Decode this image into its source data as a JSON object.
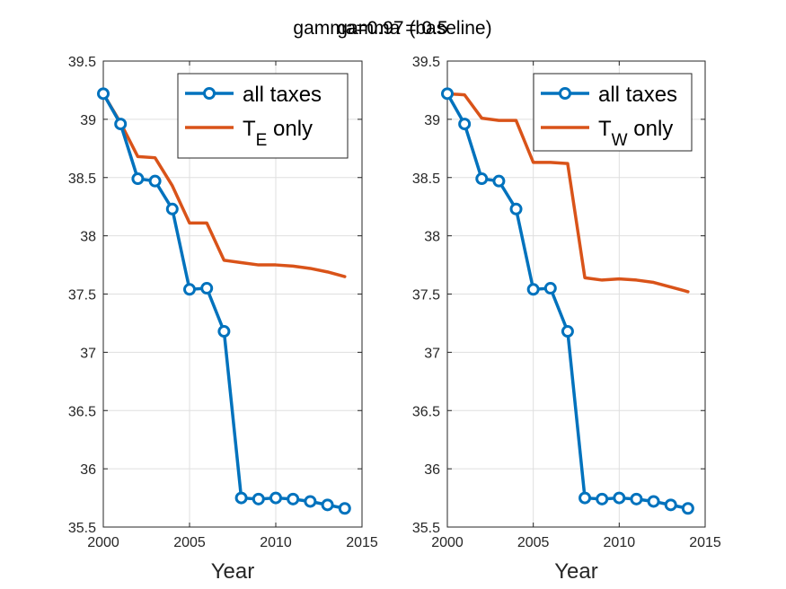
{
  "figure": {
    "title_a": "gamma=0.97 (baseline)",
    "title_b": "gamma = 0.5"
  },
  "chart_data": [
    {
      "type": "line",
      "xlabel": "Year",
      "ylabel": "",
      "xlim": [
        2000,
        2015
      ],
      "ylim": [
        35.5,
        39.5
      ],
      "xticks": [
        "2000",
        "2005",
        "2010",
        "2015"
      ],
      "yticks": [
        "35.5",
        "36",
        "36.5",
        "37",
        "37.5",
        "38",
        "38.5",
        "39",
        "39.5"
      ],
      "grid": true,
      "legend_position": "top-right",
      "x": [
        2000,
        2001,
        2002,
        2003,
        2004,
        2005,
        2006,
        2007,
        2008,
        2009,
        2010,
        2011,
        2012,
        2013,
        2014
      ],
      "series": [
        {
          "name": "all taxes",
          "color": "#0072BD",
          "marker": "circle",
          "values": [
            39.22,
            38.96,
            38.49,
            38.47,
            38.23,
            37.54,
            37.55,
            37.18,
            35.75,
            35.74,
            35.75,
            35.74,
            35.72,
            35.69,
            35.66
          ]
        },
        {
          "name": "T",
          "name_sub": "E",
          "name_suffix": " only",
          "color": "#D95319",
          "marker": "none",
          "values": [
            39.22,
            38.97,
            38.68,
            38.67,
            38.43,
            38.11,
            38.11,
            37.79,
            37.77,
            37.75,
            37.75,
            37.74,
            37.72,
            37.69,
            37.65
          ]
        }
      ]
    },
    {
      "type": "line",
      "xlabel": "Year",
      "ylabel": "",
      "xlim": [
        2000,
        2015
      ],
      "ylim": [
        35.5,
        39.5
      ],
      "xticks": [
        "2000",
        "2005",
        "2010",
        "2015"
      ],
      "yticks": [
        "35.5",
        "36",
        "36.5",
        "37",
        "37.5",
        "38",
        "38.5",
        "39",
        "39.5"
      ],
      "grid": true,
      "legend_position": "top-right",
      "x": [
        2000,
        2001,
        2002,
        2003,
        2004,
        2005,
        2006,
        2007,
        2008,
        2009,
        2010,
        2011,
        2012,
        2013,
        2014
      ],
      "series": [
        {
          "name": "all taxes",
          "color": "#0072BD",
          "marker": "circle",
          "values": [
            39.22,
            38.96,
            38.49,
            38.47,
            38.23,
            37.54,
            37.55,
            37.18,
            35.75,
            35.74,
            35.75,
            35.74,
            35.72,
            35.69,
            35.66
          ]
        },
        {
          "name": "T",
          "name_sub": "W",
          "name_suffix": " only",
          "color": "#D95319",
          "marker": "none",
          "values": [
            39.22,
            39.21,
            39.01,
            38.99,
            38.99,
            38.63,
            38.63,
            38.62,
            37.64,
            37.62,
            37.63,
            37.62,
            37.6,
            37.56,
            37.52
          ]
        }
      ]
    }
  ]
}
